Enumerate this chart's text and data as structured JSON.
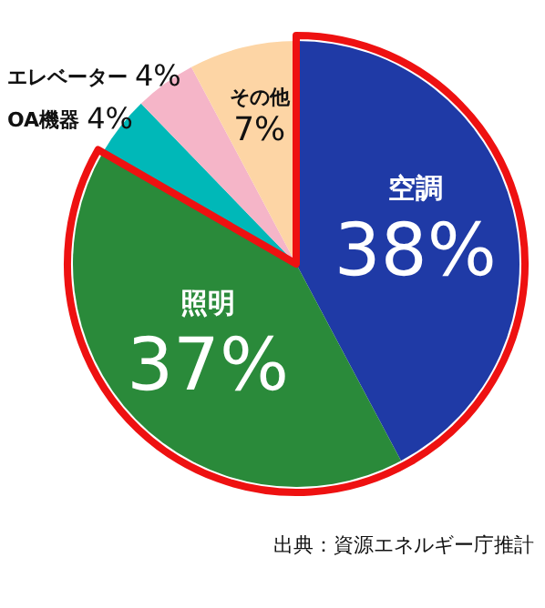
{
  "chart_data": {
    "type": "pie",
    "categories": [
      "空調",
      "照明",
      "OA機器",
      "エレベーター",
      "その他"
    ],
    "values": [
      38,
      37,
      4,
      4,
      7
    ],
    "colors": [
      "#1f3aa6",
      "#2a8a3a",
      "#00b8b8",
      "#f5b5c8",
      "#fdd5a5"
    ],
    "value_labels": [
      "38%",
      "37%",
      "4%",
      "4%",
      "7%"
    ],
    "annotations": [
      "出典：資源エネルギー庁推計"
    ],
    "legend": false
  }
}
